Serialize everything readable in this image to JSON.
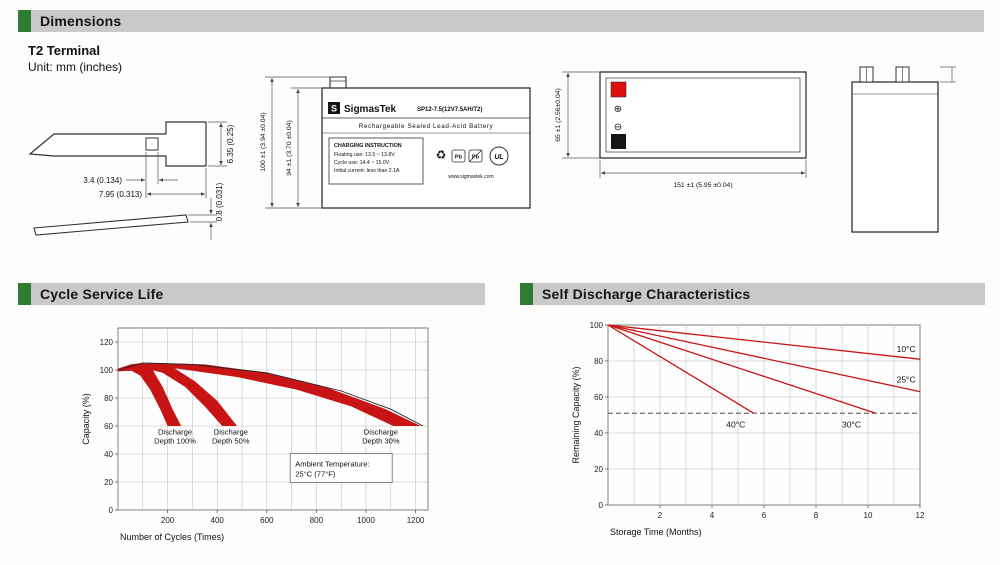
{
  "headers": {
    "dimensions": "Dimensions",
    "cycle": "Cycle Service Life",
    "self_discharge": "Self Discharge Characteristics"
  },
  "dimensions": {
    "terminal_type": "T2 Terminal",
    "unit": "Unit: mm (inches)",
    "terminal_detail": {
      "dim_height": "6.35 (0.25)",
      "dim_hole": "3.4 (0.134)",
      "dim_length": "7.95 (0.313)",
      "dim_thickness": "0.8 (0.031)"
    },
    "front_view": {
      "dim_overall_height": "100 ±1 (3.94 ±0.04)",
      "dim_case_height": "94 ±1 (3.70 ±0.04)",
      "label": {
        "logo_letter": "S",
        "brand": "SigmasTek",
        "model": "SP12-7.5(12V7.5AH/T2)",
        "battery_type": "Rechargeable Sealed Lead-Acid Battery",
        "charging_title": "CHARGING INSTRUCTION",
        "charging_line1": "Floating use: 13.5 ~ 13.8V",
        "charging_line2": "Cycle use: 14.4 ~ 15.0V",
        "charging_line3": "Initial current: less than 2.1A",
        "recycle_icon": "♻",
        "pb1": "Pb",
        "pb2": "Pb",
        "ul": "UL",
        "website": "www.sigmastek.com"
      }
    },
    "top_view": {
      "dim_width": "65 ±1 (2.56±0.04)",
      "dim_length": "151 ±1 (5.95 ±0.04)",
      "positive_symbol": "⊕",
      "negative_symbol": "⊖"
    }
  },
  "chart_data": [
    {
      "id": "cycle-chart",
      "type": "area",
      "title": "Cycle Service Life",
      "xlabel": "Number of Cycles (Times)",
      "ylabel": "Capacity (%)",
      "xlim": [
        0,
        1250
      ],
      "ylim": [
        0,
        130
      ],
      "xticks": [
        200,
        400,
        600,
        800,
        1000,
        1200
      ],
      "yticks": [
        0,
        20,
        40,
        60,
        80,
        100,
        120
      ],
      "x_grid_step": 100,
      "y_grid_step": 20,
      "grid": true,
      "legend_position": "none",
      "band_color": "#c81414",
      "bands": [
        {
          "name": "Discharge Depth 100%",
          "top": [
            [
              0,
              101
            ],
            [
              50,
              104
            ],
            [
              100,
              105
            ],
            [
              140,
              100
            ],
            [
              180,
              88
            ],
            [
              220,
              72
            ],
            [
              255,
              60
            ]
          ],
          "bottom": [
            [
              200,
              60
            ],
            [
              170,
              72
            ],
            [
              130,
              86
            ],
            [
              90,
              96
            ],
            [
              40,
              101
            ],
            [
              0,
              99
            ]
          ]
        },
        {
          "name": "Discharge Depth 50%",
          "top": [
            [
              0,
              101
            ],
            [
              80,
              104
            ],
            [
              150,
              105
            ],
            [
              230,
              101
            ],
            [
              310,
              92
            ],
            [
              400,
              78
            ],
            [
              480,
              60
            ]
          ],
          "bottom": [
            [
              420,
              60
            ],
            [
              350,
              74
            ],
            [
              270,
              88
            ],
            [
              180,
              98
            ],
            [
              90,
              102
            ],
            [
              0,
              99
            ]
          ]
        },
        {
          "name": "Discharge Depth 30%",
          "top": [
            [
              0,
              101
            ],
            [
              150,
              105
            ],
            [
              350,
              104
            ],
            [
              600,
              98
            ],
            [
              850,
              87
            ],
            [
              1080,
              72
            ],
            [
              1220,
              60
            ]
          ],
          "bottom": [
            [
              1110,
              60
            ],
            [
              940,
              74
            ],
            [
              720,
              86
            ],
            [
              480,
              95
            ],
            [
              240,
              101
            ],
            [
              0,
              99
            ]
          ]
        }
      ],
      "outline": [
        [
          0,
          100
        ],
        [
          100,
          105
        ],
        [
          300,
          104
        ],
        [
          600,
          98
        ],
        [
          900,
          85
        ],
        [
          1100,
          72
        ],
        [
          1230,
          60
        ]
      ],
      "labels": [
        {
          "text": "Discharge\nDepth 100%",
          "x": 230,
          "y": 54
        },
        {
          "text": "Discharge\nDepth 50%",
          "x": 455,
          "y": 54
        },
        {
          "text": "Discharge\nDepth 30%",
          "x": 1060,
          "y": 54
        }
      ],
      "note": {
        "text": "Ambient Temperature:\n25°C (77°F)",
        "x": 900,
        "y": 30
      }
    },
    {
      "id": "self-discharge-chart",
      "type": "line",
      "title": "Self Discharge Characteristics",
      "xlabel": "Storage Time (Months)",
      "ylabel": "Remaining Capacity (%)",
      "xlim": [
        0,
        12
      ],
      "ylim": [
        0,
        100
      ],
      "xticks": [
        2,
        4,
        6,
        8,
        10,
        12
      ],
      "yticks": [
        0,
        20,
        40,
        60,
        80,
        100
      ],
      "x_grid_step": 1,
      "y_grid_step": 20,
      "grid": true,
      "legend_position": "inline",
      "line_color": "#c81414",
      "dashed_y": 51,
      "lines": [
        {
          "name": "10°C",
          "points": [
            [
              0,
              100
            ],
            [
              12,
              81
            ]
          ],
          "label_x": 11.1,
          "label_y": 85
        },
        {
          "name": "25°C",
          "points": [
            [
              0,
              100
            ],
            [
              12,
              63
            ]
          ],
          "label_x": 11.1,
          "label_y": 68
        },
        {
          "name": "40°C",
          "points": [
            [
              0,
              100
            ],
            [
              5.6,
              51
            ]
          ],
          "label_x": 4.55,
          "label_y": 43
        },
        {
          "name": "30°C",
          "points": [
            [
              0,
              100
            ],
            [
              10.3,
              51
            ]
          ],
          "label_x": 9.0,
          "label_y": 43
        }
      ]
    }
  ]
}
